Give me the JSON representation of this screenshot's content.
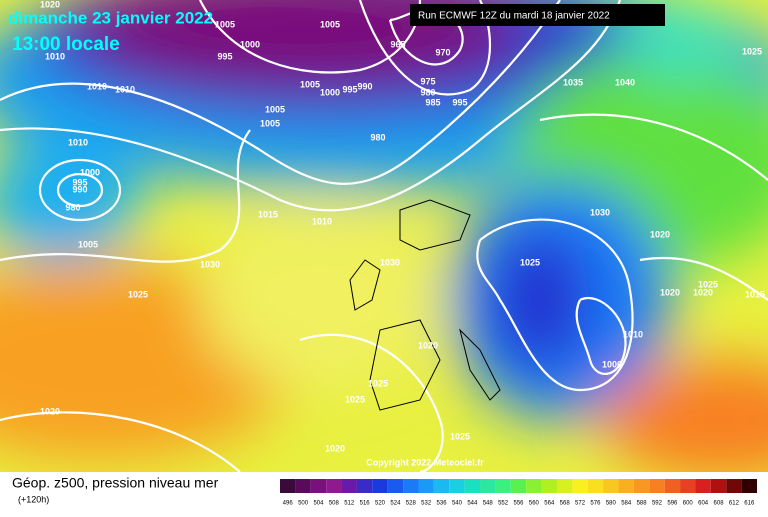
{
  "header": {
    "date": "dimanche 23 janvier 2022",
    "time": "13:00 locale",
    "run": "Run ECMWF 12Z du mardi 18 janvier 2022"
  },
  "copyright": "Copyright 2022 Meteociel.fr",
  "footer": {
    "title": "Géop. z500, pression niveau mer",
    "lead": "(+120h)"
  },
  "isobar_labels": [
    "1020",
    "1010",
    "1010",
    "1010",
    "1005",
    "1000",
    "995",
    "1005",
    "965",
    "970",
    "975",
    "980",
    "985",
    "995",
    "1005",
    "1000",
    "995",
    "990",
    "1005",
    "1005",
    "980",
    "1035",
    "1040",
    "1025",
    "1010",
    "1000",
    "995",
    "990",
    "980",
    "1015",
    "1010",
    "1030",
    "1020",
    "1005",
    "1030",
    "1030",
    "1025",
    "1025",
    "1020",
    "1020",
    "1025",
    "1015",
    "1010",
    "1000",
    "1020",
    "1025",
    "1025",
    "1020",
    "1025",
    "1020"
  ],
  "scale": {
    "values": [
      496,
      500,
      504,
      508,
      512,
      516,
      520,
      524,
      528,
      532,
      536,
      540,
      544,
      548,
      552,
      556,
      560,
      564,
      568,
      572,
      576,
      580,
      584,
      588,
      592,
      596,
      600,
      604,
      608,
      612,
      616
    ],
    "colors": [
      "#3a0a3a",
      "#5a0a5a",
      "#7a107a",
      "#8e1a8e",
      "#6a1aa8",
      "#3a2ac8",
      "#1a3ae0",
      "#1a5af0",
      "#1a7af8",
      "#1a9af8",
      "#1abaf0",
      "#1ad0e0",
      "#1ae0c0",
      "#2ae8a0",
      "#3af080",
      "#5af050",
      "#8af030",
      "#b0f020",
      "#d8f020",
      "#f8f020",
      "#f8e020",
      "#f8c820",
      "#f8b020",
      "#f89820",
      "#f88020",
      "#f06020",
      "#e84020",
      "#d82020",
      "#b01010",
      "#700808",
      "#300000"
    ]
  }
}
